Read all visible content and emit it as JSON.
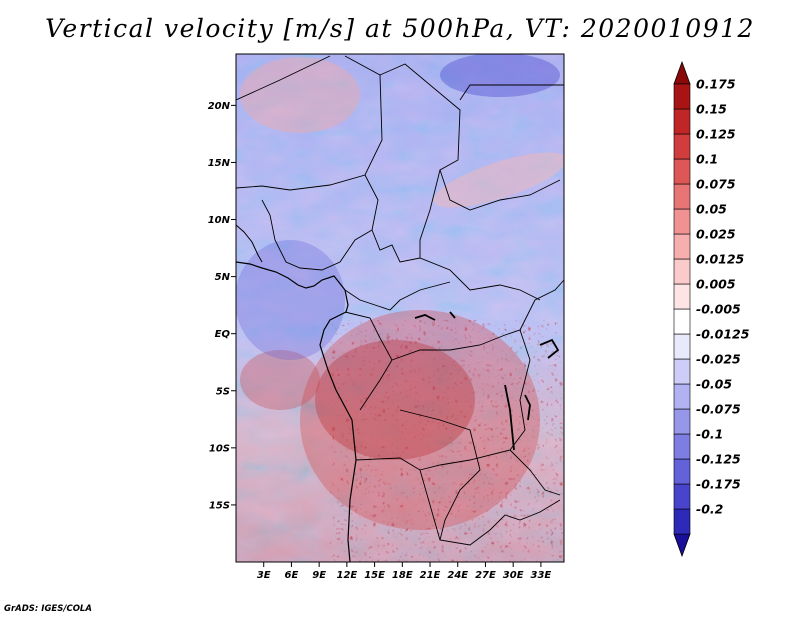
{
  "title": "Vertical velocity [m/s] at 500hPa, VT: 2020010912",
  "credit": "GrADS: IGES/COLA",
  "map": {
    "lon_range": [
      0,
      35.5
    ],
    "lat_range": [
      -20,
      24.5
    ],
    "lat_ticks": [
      {
        "value": 20,
        "label": "20N"
      },
      {
        "value": 15,
        "label": "15N"
      },
      {
        "value": 10,
        "label": "10N"
      },
      {
        "value": 5,
        "label": "5N"
      },
      {
        "value": 0,
        "label": "EQ"
      },
      {
        "value": -5,
        "label": "5S"
      },
      {
        "value": -10,
        "label": "10S"
      },
      {
        "value": -15,
        "label": "15S"
      }
    ],
    "lon_ticks": [
      {
        "value": 3,
        "label": "3E"
      },
      {
        "value": 6,
        "label": "6E"
      },
      {
        "value": 9,
        "label": "9E"
      },
      {
        "value": 12,
        "label": "12E"
      },
      {
        "value": 15,
        "label": "15E"
      },
      {
        "value": 18,
        "label": "18E"
      },
      {
        "value": 21,
        "label": "21E"
      },
      {
        "value": 24,
        "label": "24E"
      },
      {
        "value": 27,
        "label": "27E"
      },
      {
        "value": 30,
        "label": "30E"
      },
      {
        "value": 33,
        "label": "33E"
      }
    ]
  },
  "colorbar": {
    "colors": [
      "#1a0f9a",
      "#2e2ab8",
      "#4845cc",
      "#6362d8",
      "#7d7de2",
      "#9797ea",
      "#b2b1f1",
      "#cdcdf7",
      "#e9e9fc",
      "#ffffff",
      "#fde5e5",
      "#fbcaca",
      "#f7aeae",
      "#f09292",
      "#e87575",
      "#de5757",
      "#d13d3d",
      "#c02626",
      "#a81414",
      "#8c0909"
    ],
    "labels": [
      "0.175",
      "0.15",
      "0.125",
      "0.1",
      "0.075",
      "0.05",
      "0.025",
      "0.0125",
      "0.005",
      "-0.005",
      "-0.0125",
      "-0.025",
      "-0.05",
      "-0.075",
      "-0.1",
      "-0.125",
      "-0.175",
      "-0.2"
    ]
  }
}
